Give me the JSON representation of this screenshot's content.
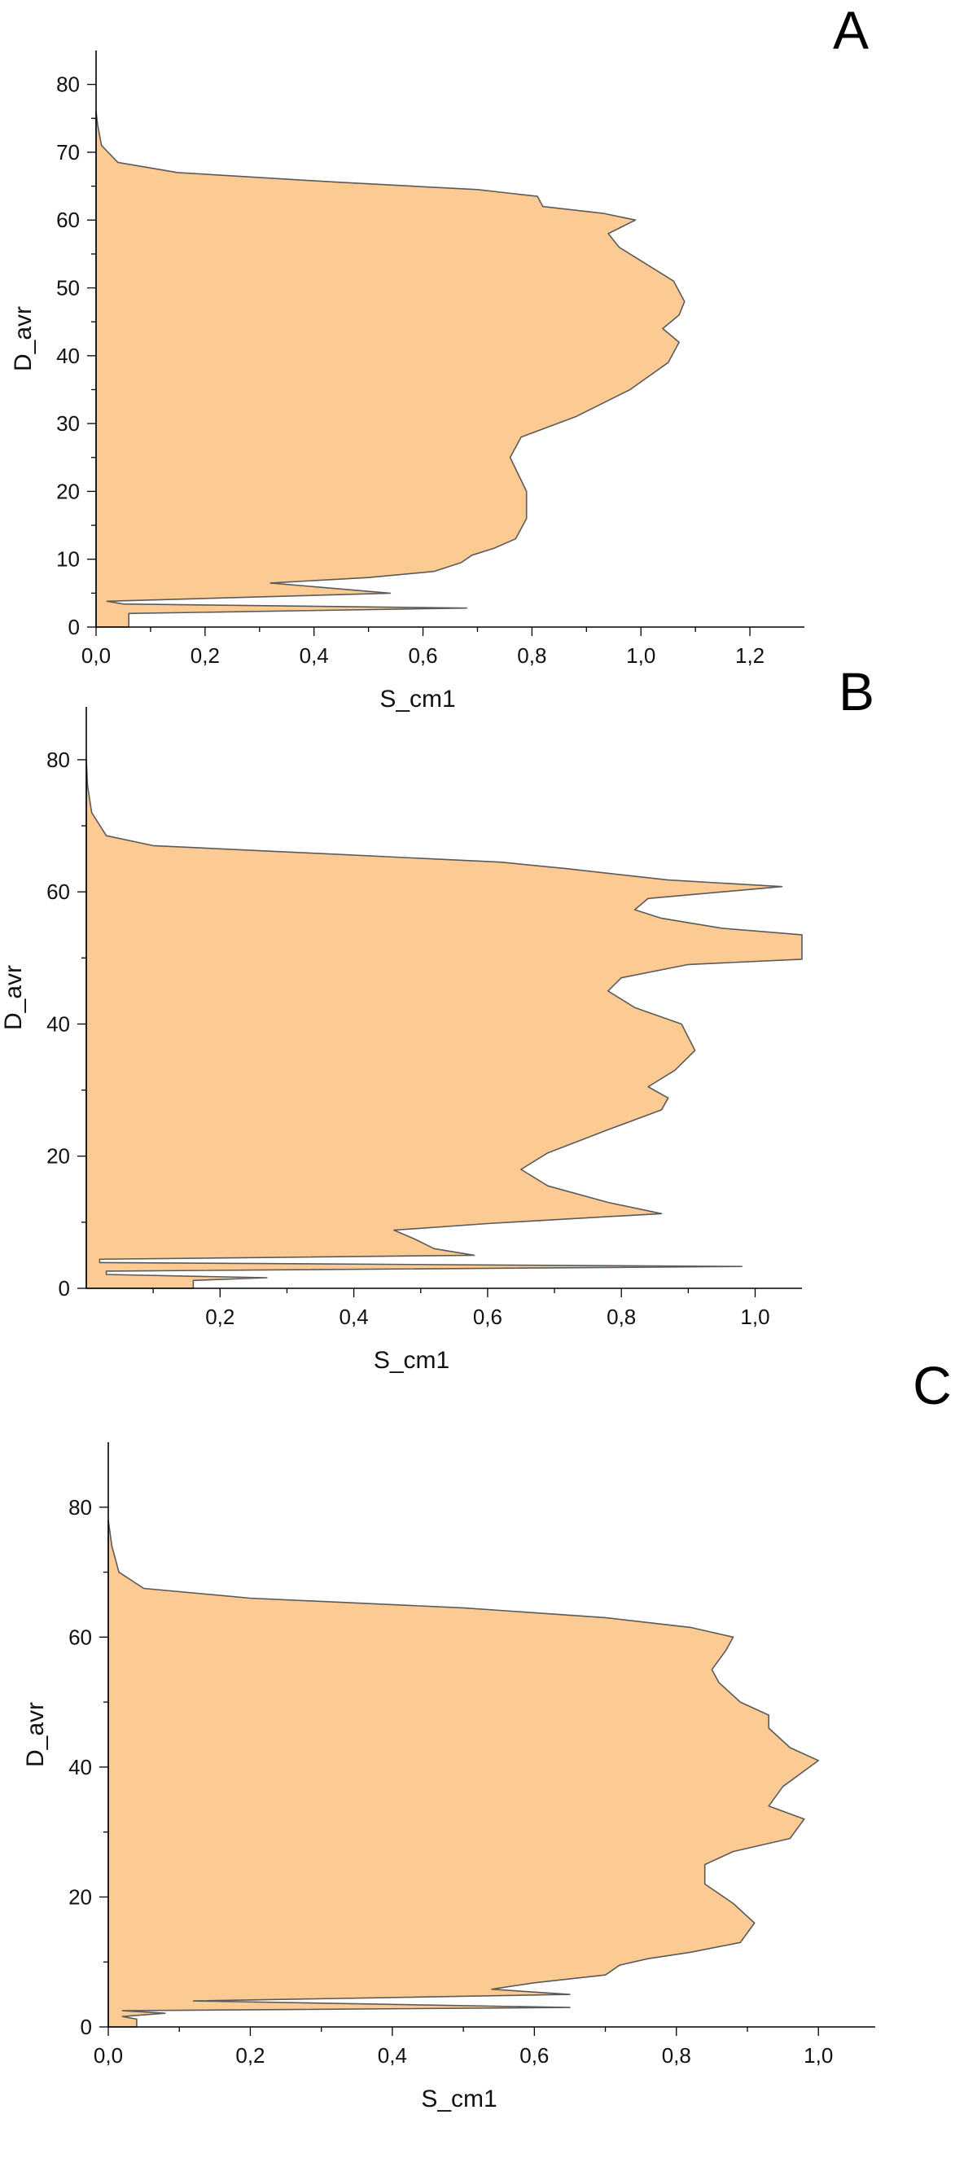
{
  "chart_data": [
    {
      "type": "area",
      "panel_label": "A",
      "xlabel": "S_cm1",
      "ylabel": "D_avr",
      "xlim": [
        0,
        1.3
      ],
      "ylim": [
        0,
        85
      ],
      "x_ticks": [
        0,
        0.2,
        0.4,
        0.6,
        0.8,
        1.0,
        1.2
      ],
      "x_tick_labels": [
        "0,0",
        "0,2",
        "0,4",
        "0,6",
        "0,8",
        "1,0",
        "1,2"
      ],
      "y_ticks": [
        0,
        10,
        20,
        30,
        40,
        50,
        60,
        70,
        80
      ],
      "y_tick_labels": [
        "0",
        "10",
        "20",
        "30",
        "40",
        "50",
        "60",
        "70",
        "80"
      ],
      "series": [
        {
          "points": [
            [
              0.06,
              0
            ],
            [
              0.06,
              2
            ],
            [
              0.68,
              2.8
            ],
            [
              0.05,
              3.4
            ],
            [
              0.02,
              3.8
            ],
            [
              0.54,
              5.0
            ],
            [
              0.32,
              6.5
            ],
            [
              0.5,
              7.3
            ],
            [
              0.62,
              8.2
            ],
            [
              0.67,
              9.5
            ],
            [
              0.69,
              10.6
            ],
            [
              0.73,
              11.6
            ],
            [
              0.77,
              13
            ],
            [
              0.79,
              16
            ],
            [
              0.79,
              20
            ],
            [
              0.76,
              25
            ],
            [
              0.78,
              28
            ],
            [
              0.88,
              31
            ],
            [
              0.98,
              35
            ],
            [
              1.05,
              39
            ],
            [
              1.07,
              42
            ],
            [
              1.04,
              44
            ],
            [
              1.07,
              46
            ],
            [
              1.08,
              48
            ],
            [
              1.06,
              51
            ],
            [
              1.0,
              54
            ],
            [
              0.96,
              56
            ],
            [
              0.94,
              58
            ],
            [
              0.99,
              60
            ],
            [
              0.93,
              61
            ],
            [
              0.82,
              62
            ],
            [
              0.81,
              63.5
            ],
            [
              0.7,
              64.5
            ],
            [
              0.44,
              65.6
            ],
            [
              0.15,
              67
            ],
            [
              0.04,
              68.5
            ],
            [
              0.01,
              71
            ],
            [
              0.003,
              74
            ],
            [
              0.0,
              76
            ]
          ]
        }
      ]
    },
    {
      "type": "area",
      "panel_label": "B",
      "xlabel": "S_cm1",
      "ylabel": "D_avr",
      "xlim": [
        0.0,
        1.07
      ],
      "ylim": [
        0,
        88
      ],
      "x_ticks": [
        0.2,
        0.4,
        0.6,
        0.8,
        1.0
      ],
      "x_tick_labels": [
        "0,2",
        "0,4",
        "0,6",
        "0,8",
        "1,0"
      ],
      "y_ticks": [
        0,
        20,
        40,
        60,
        80
      ],
      "y_tick_labels": [
        "0",
        "20",
        "40",
        "60",
        "80"
      ],
      "series": [
        {
          "points": [
            [
              0.16,
              0
            ],
            [
              0.16,
              1.2
            ],
            [
              0.27,
              1.6
            ],
            [
              0.03,
              2.1
            ],
            [
              0.03,
              2.6
            ],
            [
              0.98,
              3.3
            ],
            [
              0.02,
              3.9
            ],
            [
              0.02,
              4.4
            ],
            [
              0.58,
              5.0
            ],
            [
              0.52,
              6.0
            ],
            [
              0.49,
              7.5
            ],
            [
              0.46,
              8.8
            ],
            [
              0.6,
              9.8
            ],
            [
              0.72,
              10.5
            ],
            [
              0.86,
              11.3
            ],
            [
              0.78,
              13
            ],
            [
              0.69,
              15.5
            ],
            [
              0.65,
              18
            ],
            [
              0.69,
              20.5
            ],
            [
              0.78,
              24
            ],
            [
              0.86,
              27
            ],
            [
              0.87,
              28.8
            ],
            [
              0.84,
              30.5
            ],
            [
              0.88,
              33
            ],
            [
              0.91,
              36
            ],
            [
              0.89,
              40
            ],
            [
              0.82,
              42.5
            ],
            [
              0.78,
              45
            ],
            [
              0.8,
              47
            ],
            [
              0.9,
              49
            ],
            [
              1.07,
              49.8
            ],
            [
              1.07,
              53.5
            ],
            [
              0.95,
              54.5
            ],
            [
              0.86,
              56
            ],
            [
              0.82,
              57.3
            ],
            [
              0.84,
              59
            ],
            [
              1.04,
              60.8
            ],
            [
              0.87,
              61.8
            ],
            [
              0.72,
              63.5
            ],
            [
              0.62,
              64.5
            ],
            [
              0.35,
              65.8
            ],
            [
              0.1,
              67
            ],
            [
              0.03,
              68.5
            ],
            [
              0.008,
              72
            ],
            [
              0.002,
              76
            ],
            [
              0.0,
              80
            ]
          ]
        }
      ]
    },
    {
      "type": "area",
      "panel_label": "C",
      "xlabel": "S_cm1",
      "ylabel": "D_avr",
      "xlim": [
        0,
        1.08
      ],
      "ylim": [
        0,
        90
      ],
      "x_ticks": [
        0,
        0.2,
        0.4,
        0.6,
        0.8,
        1.0
      ],
      "x_tick_labels": [
        "0,0",
        "0,2",
        "0,4",
        "0,6",
        "0,8",
        "1,0"
      ],
      "y_ticks": [
        0,
        20,
        40,
        60,
        80
      ],
      "y_tick_labels": [
        "0",
        "20",
        "40",
        "60",
        "80"
      ],
      "series": [
        {
          "points": [
            [
              0.04,
              0
            ],
            [
              0.04,
              1.2
            ],
            [
              0.02,
              1.6
            ],
            [
              0.08,
              2.1
            ],
            [
              0.02,
              2.5
            ],
            [
              0.65,
              3.0
            ],
            [
              0.12,
              4.0
            ],
            [
              0.65,
              5.0
            ],
            [
              0.54,
              5.8
            ],
            [
              0.6,
              6.8
            ],
            [
              0.7,
              8
            ],
            [
              0.72,
              9.5
            ],
            [
              0.76,
              10.5
            ],
            [
              0.82,
              11.5
            ],
            [
              0.89,
              13
            ],
            [
              0.91,
              16
            ],
            [
              0.88,
              19
            ],
            [
              0.84,
              22
            ],
            [
              0.84,
              25
            ],
            [
              0.88,
              27
            ],
            [
              0.96,
              29
            ],
            [
              0.98,
              32
            ],
            [
              0.93,
              34
            ],
            [
              0.95,
              37
            ],
            [
              1.0,
              41
            ],
            [
              0.96,
              43
            ],
            [
              0.93,
              46
            ],
            [
              0.93,
              48
            ],
            [
              0.89,
              50
            ],
            [
              0.86,
              53
            ],
            [
              0.85,
              55
            ],
            [
              0.87,
              58
            ],
            [
              0.88,
              60
            ],
            [
              0.82,
              61.5
            ],
            [
              0.7,
              63
            ],
            [
              0.5,
              64.5
            ],
            [
              0.2,
              66
            ],
            [
              0.05,
              67.5
            ],
            [
              0.015,
              70
            ],
            [
              0.005,
              74
            ],
            [
              0.0,
              78
            ]
          ]
        }
      ]
    }
  ]
}
